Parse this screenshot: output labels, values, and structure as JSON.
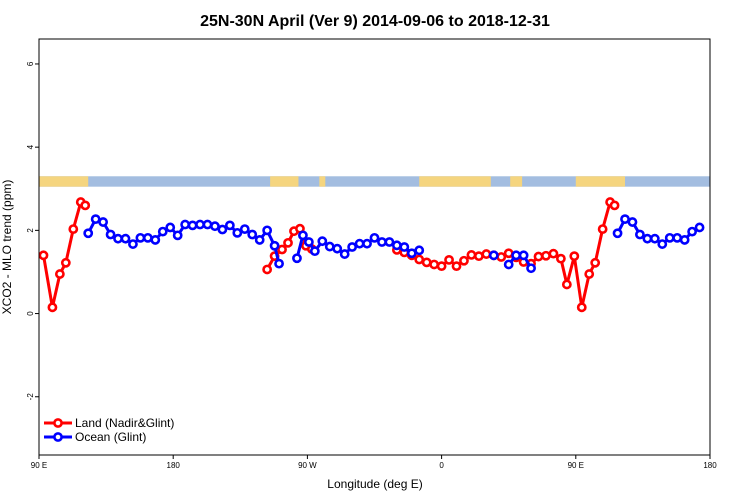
{
  "chart_data": {
    "type": "line",
    "title": "25N-30N April (Ver 9)   2014-09-06 to 2018-12-31",
    "xlabel": "Longitude (deg E)",
    "ylabel": "XCO2 - MLO trend (ppm)",
    "xlim": [
      90,
      540
    ],
    "ylim": [
      -3.4,
      6.6
    ],
    "x_ticks": [
      {
        "value": 90,
        "label": "90 E"
      },
      {
        "value": 180,
        "label": "180"
      },
      {
        "value": 270,
        "label": "90 W"
      },
      {
        "value": 360,
        "label": "0"
      },
      {
        "value": 450,
        "label": "90 E"
      },
      {
        "value": 540,
        "label": "180"
      }
    ],
    "y_ticks": [
      {
        "value": -2,
        "label": "-2"
      },
      {
        "value": 0,
        "label": "0"
      },
      {
        "value": 2,
        "label": "2"
      },
      {
        "value": 4,
        "label": "4"
      },
      {
        "value": 6,
        "label": "6"
      }
    ],
    "land_mask": {
      "y_range": [
        3.05,
        3.3
      ],
      "ocean_color": "#a3bde0",
      "land_color": "#f5d57f",
      "land_segments": [
        [
          90,
          123
        ],
        [
          245,
          264
        ],
        [
          278,
          282
        ],
        [
          345,
          393
        ],
        [
          406,
          414
        ],
        [
          450,
          483
        ]
      ]
    },
    "series": [
      {
        "name": "Land (Nadir&Glint)",
        "color": "#ff0000",
        "points": [
          [
            93,
            1.4
          ],
          [
            99,
            0.15
          ],
          [
            104,
            0.95
          ],
          [
            108,
            1.22
          ],
          [
            113,
            2.03
          ],
          [
            118,
            2.68
          ],
          [
            121,
            2.6
          ],
          [
            243,
            1.06
          ],
          [
            248,
            1.38
          ],
          [
            253,
            1.54
          ],
          [
            257,
            1.7
          ],
          [
            261,
            1.98
          ],
          [
            265,
            2.04
          ],
          [
            269,
            1.63
          ],
          [
            273,
            1.55
          ],
          [
            330,
            1.53
          ],
          [
            335,
            1.47
          ],
          [
            340,
            1.4
          ],
          [
            345,
            1.3
          ],
          [
            350,
            1.23
          ],
          [
            355,
            1.18
          ],
          [
            360,
            1.14
          ],
          [
            365,
            1.29
          ],
          [
            370,
            1.14
          ],
          [
            375,
            1.27
          ],
          [
            380,
            1.41
          ],
          [
            385,
            1.38
          ],
          [
            390,
            1.43
          ],
          [
            395,
            1.4
          ],
          [
            400,
            1.36
          ],
          [
            405,
            1.45
          ],
          [
            410,
            1.35
          ],
          [
            415,
            1.24
          ],
          [
            420,
            1.2
          ],
          [
            425,
            1.37
          ],
          [
            430,
            1.39
          ],
          [
            435,
            1.44
          ],
          [
            440,
            1.32
          ],
          [
            444,
            0.7
          ],
          [
            449,
            1.38
          ],
          [
            454,
            0.15
          ],
          [
            459,
            0.95
          ],
          [
            463,
            1.22
          ],
          [
            468,
            2.03
          ],
          [
            473,
            2.68
          ],
          [
            476,
            2.6
          ]
        ]
      },
      {
        "name": "Ocean (Glint)",
        "color": "#0000ff",
        "points": [
          [
            123,
            1.93
          ],
          [
            128,
            2.27
          ],
          [
            133,
            2.2
          ],
          [
            138,
            1.9
          ],
          [
            143,
            1.8
          ],
          [
            148,
            1.8
          ],
          [
            153,
            1.67
          ],
          [
            158,
            1.82
          ],
          [
            163,
            1.82
          ],
          [
            168,
            1.77
          ],
          [
            173,
            1.97
          ],
          [
            178,
            2.07
          ],
          [
            183,
            1.88
          ],
          [
            188,
            2.14
          ],
          [
            193,
            2.12
          ],
          [
            198,
            2.14
          ],
          [
            203,
            2.14
          ],
          [
            208,
            2.1
          ],
          [
            213,
            2.02
          ],
          [
            218,
            2.12
          ],
          [
            223,
            1.94
          ],
          [
            228,
            2.03
          ],
          [
            233,
            1.9
          ],
          [
            238,
            1.77
          ],
          [
            243,
            2.0
          ],
          [
            248,
            1.63
          ],
          [
            251,
            1.2
          ],
          [
            263,
            1.33
          ],
          [
            267,
            1.88
          ],
          [
            271,
            1.72
          ],
          [
            275,
            1.5
          ],
          [
            280,
            1.74
          ],
          [
            285,
            1.61
          ],
          [
            290,
            1.56
          ],
          [
            295,
            1.43
          ],
          [
            300,
            1.6
          ],
          [
            305,
            1.68
          ],
          [
            310,
            1.68
          ],
          [
            315,
            1.82
          ],
          [
            320,
            1.72
          ],
          [
            325,
            1.72
          ],
          [
            330,
            1.64
          ],
          [
            335,
            1.6
          ],
          [
            340,
            1.45
          ],
          [
            345,
            1.52
          ],
          [
            395,
            1.4
          ],
          [
            405,
            1.18
          ],
          [
            410,
            1.4
          ],
          [
            415,
            1.4
          ],
          [
            420,
            1.09
          ],
          [
            478,
            1.93
          ],
          [
            483,
            2.27
          ],
          [
            488,
            2.2
          ],
          [
            493,
            1.9
          ],
          [
            498,
            1.8
          ],
          [
            503,
            1.8
          ],
          [
            508,
            1.67
          ],
          [
            513,
            1.82
          ],
          [
            518,
            1.82
          ],
          [
            523,
            1.77
          ],
          [
            528,
            1.97
          ],
          [
            533,
            2.07
          ]
        ]
      }
    ],
    "legend": {
      "position": "bottom-left",
      "entries": [
        {
          "label": "Land (Nadir&Glint)",
          "color": "#ff0000"
        },
        {
          "label": "Ocean (Glint)",
          "color": "#0000ff"
        }
      ]
    }
  }
}
